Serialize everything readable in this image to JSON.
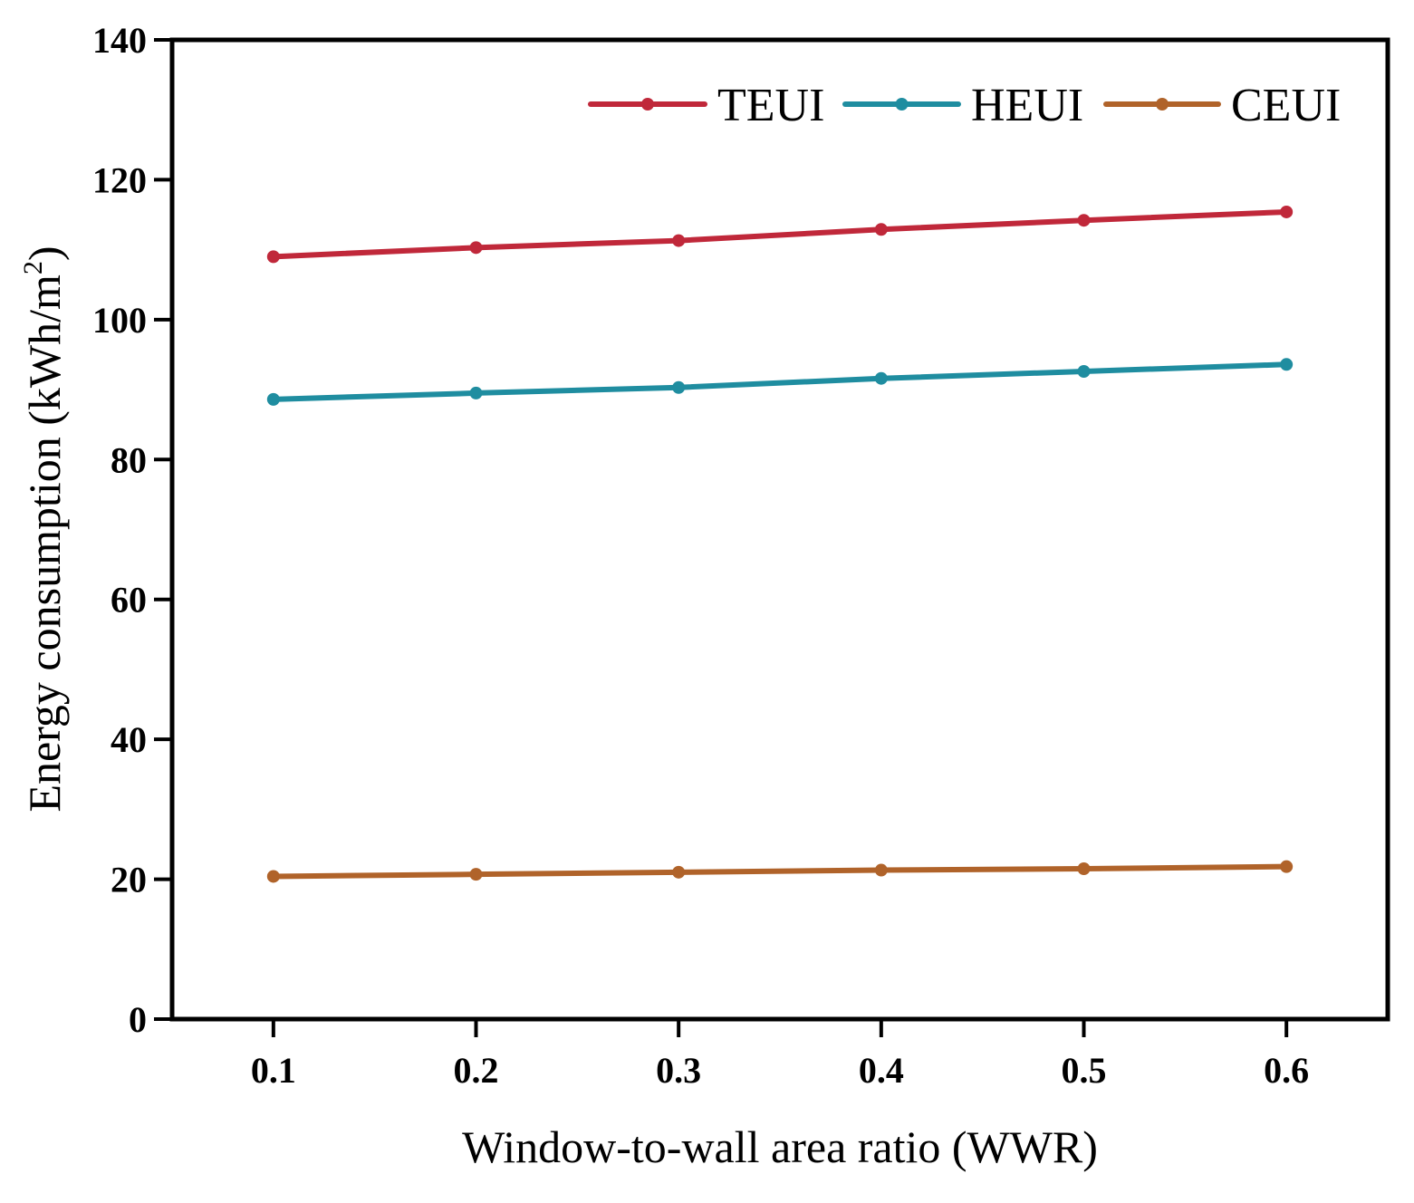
{
  "chart_data": {
    "type": "line",
    "title": "",
    "xlabel": "Window-to-wall area ratio (WWR)",
    "ylabel": "Energy consumption (kWh/m²)",
    "ylabel_main": "Energy consumption (kWh/m",
    "ylabel_sup": "2",
    "ylabel_end": ")",
    "x": [
      0.1,
      0.2,
      0.3,
      0.4,
      0.5,
      0.6
    ],
    "x_tick_labels": [
      "0.1",
      "0.2",
      "0.3",
      "0.4",
      "0.5",
      "0.6"
    ],
    "xlim": [
      0.05,
      0.65
    ],
    "ylim": [
      0,
      140
    ],
    "y_ticks": [
      0,
      20,
      40,
      60,
      80,
      100,
      120,
      140
    ],
    "y_tick_labels": [
      "0",
      "20",
      "40",
      "60",
      "80",
      "100",
      "120",
      "140"
    ],
    "grid": false,
    "legend_position": "top-right",
    "series": [
      {
        "name": "TEUI",
        "color": "#c0283a",
        "values": [
          109.0,
          110.3,
          111.3,
          112.9,
          114.2,
          115.4
        ]
      },
      {
        "name": "HEUI",
        "color": "#1f8da0",
        "values": [
          88.6,
          89.5,
          90.3,
          91.6,
          92.6,
          93.6
        ]
      },
      {
        "name": "CEUI",
        "color": "#b0632a",
        "values": [
          20.4,
          20.7,
          21.0,
          21.3,
          21.5,
          21.8
        ]
      }
    ]
  }
}
